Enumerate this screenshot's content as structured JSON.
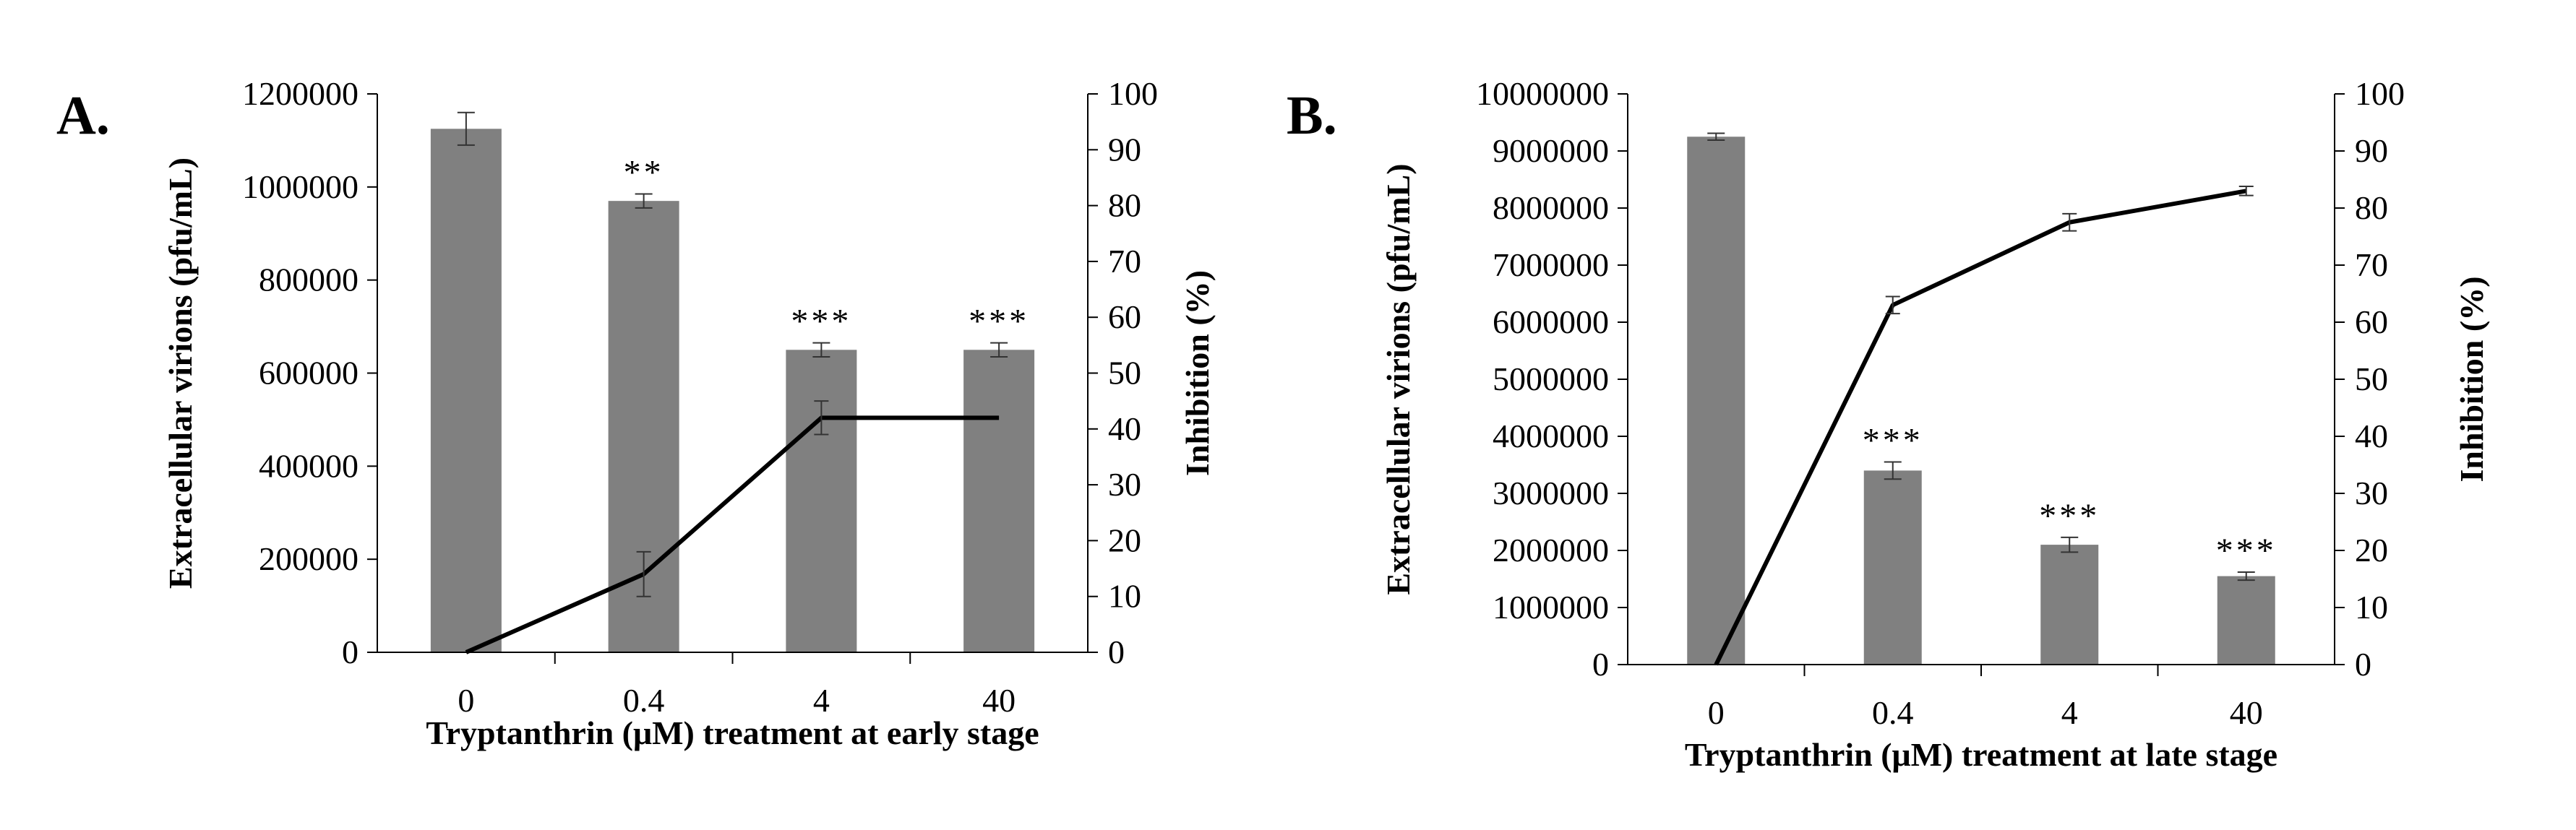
{
  "chart_data": [
    {
      "panel_label": "A.",
      "type": "bar+line",
      "categories": [
        "0",
        "0.4",
        "4",
        "40"
      ],
      "bar_series": {
        "name": "Extracellular virions (pfu/mL)",
        "values": [
          1125000,
          970000,
          650000,
          650000
        ],
        "errors": [
          35000,
          15000,
          15000,
          15000
        ],
        "significance": [
          "",
          "**",
          "***",
          "***"
        ],
        "color": "#808080"
      },
      "line_series": {
        "name": "Inhibition (%)",
        "values": [
          0,
          14,
          42,
          42
        ],
        "errors": [
          0,
          4,
          3,
          0
        ],
        "color": "#000000"
      },
      "xlabel": "Tryptanthrin  (μM) treatment at early stage",
      "ylabel": "Extracellular  virions  (pfu/mL)",
      "y2label": "Inhibition  (%)",
      "ylim": [
        0,
        1200000
      ],
      "y_ticks": [
        "0",
        "200000",
        "400000",
        "600000",
        "800000",
        "1000000",
        "1200000"
      ],
      "y2lim": [
        0,
        100
      ],
      "y2_ticks": [
        "0",
        "10",
        "20",
        "30",
        "40",
        "50",
        "60",
        "70",
        "80",
        "90",
        "100"
      ]
    },
    {
      "panel_label": "B.",
      "type": "bar+line",
      "categories": [
        "0",
        "0.4",
        "4",
        "40"
      ],
      "bar_series": {
        "name": "Extracellular virions (pfu/mL)",
        "values": [
          9250000,
          3400000,
          2100000,
          1550000
        ],
        "errors": [
          60000,
          150000,
          130000,
          70000
        ],
        "significance": [
          "",
          "***",
          "***",
          "***"
        ],
        "color": "#808080"
      },
      "line_series": {
        "name": "Inhibition (%)",
        "values": [
          0,
          63,
          77.5,
          83
        ],
        "errors": [
          0,
          1.5,
          1.5,
          0.8
        ],
        "color": "#000000"
      },
      "xlabel": "Tryptanthrin  (μM) treatment at late stage",
      "ylabel": "Extracellular  virions  (pfu/mL)",
      "y2label": "Inhibition  (%)",
      "ylim": [
        0,
        10000000
      ],
      "y_ticks": [
        "0",
        "1000000",
        "2000000",
        "3000000",
        "4000000",
        "5000000",
        "6000000",
        "7000000",
        "8000000",
        "9000000",
        "10000000"
      ],
      "y2lim": [
        0,
        100
      ],
      "y2_ticks": [
        "0",
        "10",
        "20",
        "30",
        "40",
        "50",
        "60",
        "70",
        "80",
        "90",
        "100"
      ]
    }
  ]
}
